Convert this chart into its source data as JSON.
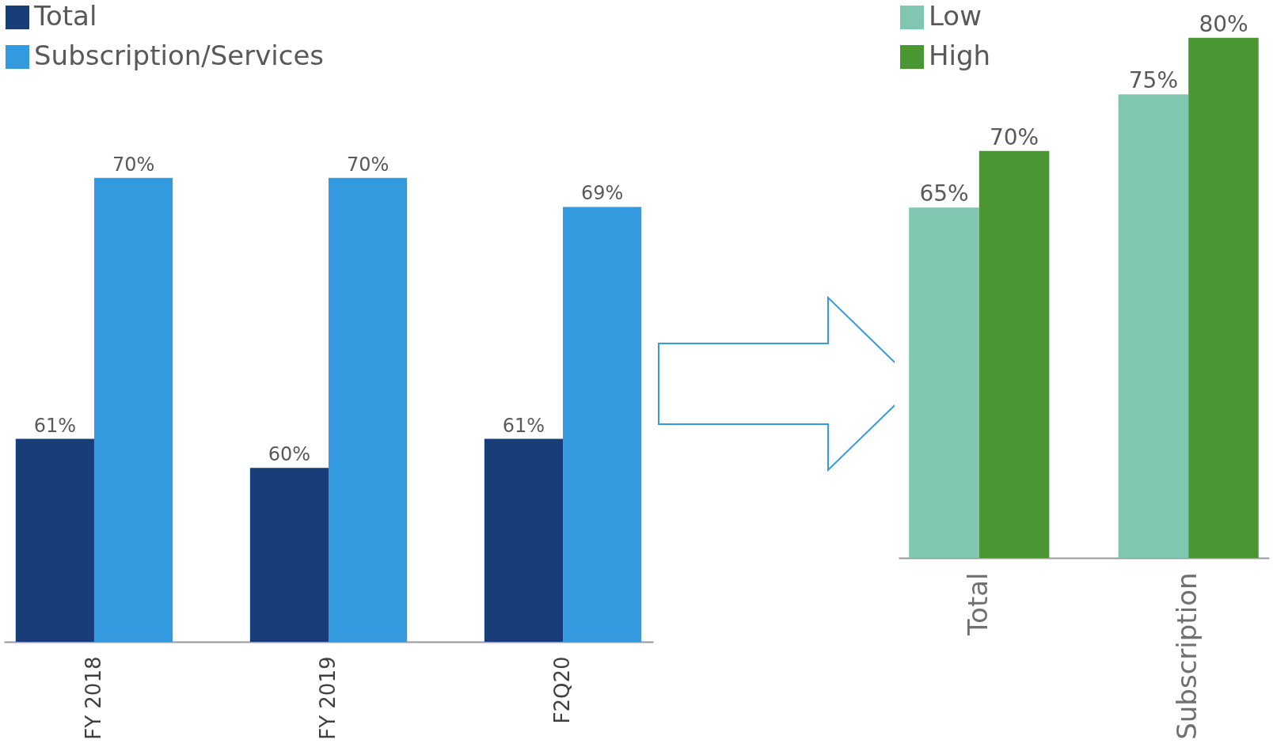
{
  "chart_data": [
    {
      "type": "bar",
      "categories": [
        "FY 2018",
        "FY 2019",
        "F2Q20"
      ],
      "ylim": [
        54,
        76
      ],
      "legend": "top left",
      "series": [
        {
          "name": "Total",
          "color": "#173e78",
          "values": [
            61,
            60,
            61
          ],
          "value_labels": [
            "61%",
            "60%",
            "61%"
          ]
        },
        {
          "name": "Subscription/Services",
          "color": "#339ae0",
          "values": [
            70,
            70,
            69
          ],
          "value_labels": [
            "70%",
            "70%",
            "69%"
          ]
        }
      ]
    },
    {
      "type": "bar",
      "categories": [
        "Total",
        "Subscription"
      ],
      "ylim": [
        34,
        83
      ],
      "legend": "top left",
      "series": [
        {
          "name": "Low",
          "color": "#80c6b0",
          "values": [
            65,
            75
          ],
          "value_labels": [
            "65%",
            "75%"
          ]
        },
        {
          "name": "High",
          "color": "#4a9632",
          "values": [
            70,
            80
          ],
          "value_labels": [
            "70%",
            "80%"
          ]
        }
      ]
    }
  ]
}
